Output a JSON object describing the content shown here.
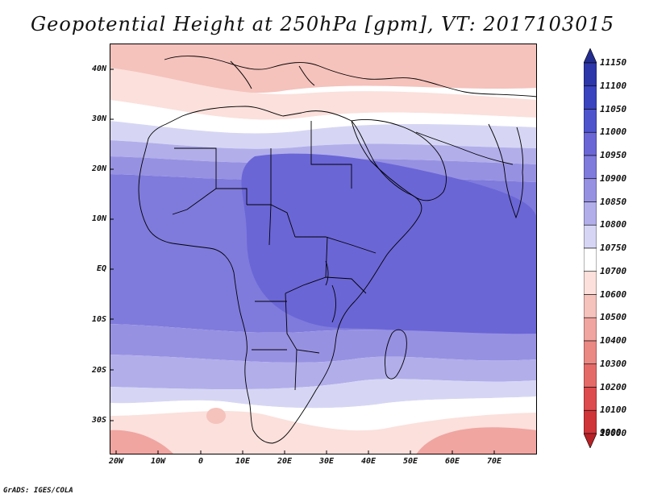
{
  "title": "Geopotential Height at 250hPa [gpm], VT: 2017103015",
  "credit": "GrADS: IGES/COLA",
  "lat_labels": [
    "40N",
    "30N",
    "20N",
    "10N",
    "EQ",
    "10S",
    "20S",
    "30S"
  ],
  "lon_labels": [
    "20W",
    "10W",
    "0",
    "10E",
    "20E",
    "30E",
    "40E",
    "50E",
    "60E",
    "70E"
  ],
  "colorbar": {
    "levels": [
      "11150",
      "11100",
      "11050",
      "11000",
      "10950",
      "10900",
      "10850",
      "10800",
      "10750",
      "10700",
      "10600",
      "10500",
      "10400",
      "10300",
      "10200",
      "10100",
      "10000",
      "9900"
    ],
    "colors": [
      "#232d8f",
      "#2d37a9",
      "#3a44bf",
      "#4e54cc",
      "#6a66d6",
      "#7f7bdc",
      "#9791e2",
      "#b2aeea",
      "#d6d6f4",
      "#ffffff",
      "#fbe0dc",
      "#f5c2bc",
      "#f0a5a0",
      "#ea8884",
      "#e46a68",
      "#dd4b4e",
      "#cf3438",
      "#b62125"
    ]
  }
}
